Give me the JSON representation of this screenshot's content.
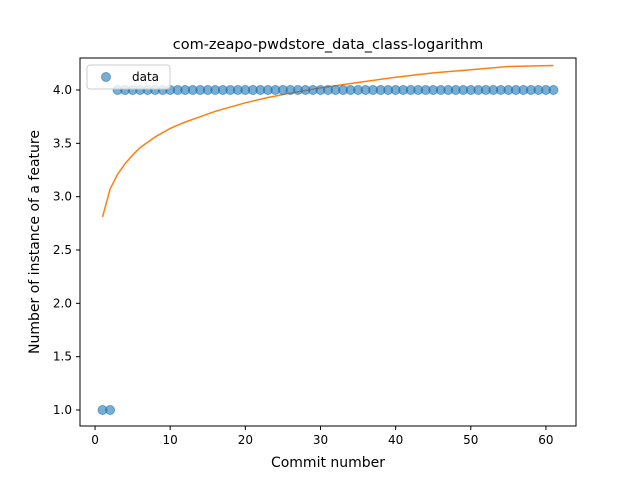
{
  "chart_data": {
    "type": "scatter",
    "title": "com-zeapo-pwdstore_data_class-logarithm",
    "xlabel": "Commit number",
    "ylabel": "Number of instance of a feature",
    "xlim": [
      -2,
      64
    ],
    "ylim": [
      0.85,
      4.3
    ],
    "xticks": [
      0,
      10,
      20,
      30,
      40,
      50,
      60
    ],
    "yticks": [
      1.0,
      1.5,
      2.0,
      2.5,
      3.0,
      3.5,
      4.0
    ],
    "xtick_labels": [
      "0",
      "10",
      "20",
      "30",
      "40",
      "50",
      "60"
    ],
    "ytick_labels": [
      "1.0",
      "1.5",
      "2.0",
      "2.5",
      "3.0",
      "3.5",
      "4.0"
    ],
    "legend": {
      "position": "top-left",
      "entries": [
        "data"
      ]
    },
    "grid": false,
    "series": [
      {
        "name": "data",
        "kind": "scatter",
        "color": "#1f77b4",
        "x": [
          1,
          2,
          3,
          4,
          5,
          6,
          7,
          8,
          9,
          10,
          11,
          12,
          13,
          14,
          15,
          16,
          17,
          18,
          19,
          20,
          21,
          22,
          23,
          24,
          25,
          26,
          27,
          28,
          29,
          30,
          31,
          32,
          33,
          34,
          35,
          36,
          37,
          38,
          39,
          40,
          41,
          42,
          43,
          44,
          45,
          46,
          47,
          48,
          49,
          50,
          51,
          52,
          53,
          54,
          55,
          56,
          57,
          58,
          59,
          60,
          61
        ],
        "y": [
          1,
          1,
          4,
          4,
          4,
          4,
          4,
          4,
          4,
          4,
          4,
          4,
          4,
          4,
          4,
          4,
          4,
          4,
          4,
          4,
          4,
          4,
          4,
          4,
          4,
          4,
          4,
          4,
          4,
          4,
          4,
          4,
          4,
          4,
          4,
          4,
          4,
          4,
          4,
          4,
          4,
          4,
          4,
          4,
          4,
          4,
          4,
          4,
          4,
          4,
          4,
          4,
          4,
          4,
          4,
          4,
          4,
          4,
          4,
          4,
          4
        ]
      },
      {
        "kind": "line",
        "color": "#ff7f0e",
        "x": [
          1,
          2,
          3,
          4,
          5,
          6,
          7,
          8,
          9,
          10,
          12,
          14,
          16,
          18,
          20,
          23,
          26,
          30,
          35,
          40,
          45,
          50,
          55,
          61
        ],
        "y": [
          2.81,
          3.07,
          3.21,
          3.31,
          3.39,
          3.46,
          3.51,
          3.56,
          3.6,
          3.64,
          3.7,
          3.75,
          3.8,
          3.84,
          3.88,
          3.93,
          3.97,
          4.02,
          4.07,
          4.12,
          4.16,
          4.19,
          4.22,
          4.23
        ]
      }
    ]
  }
}
